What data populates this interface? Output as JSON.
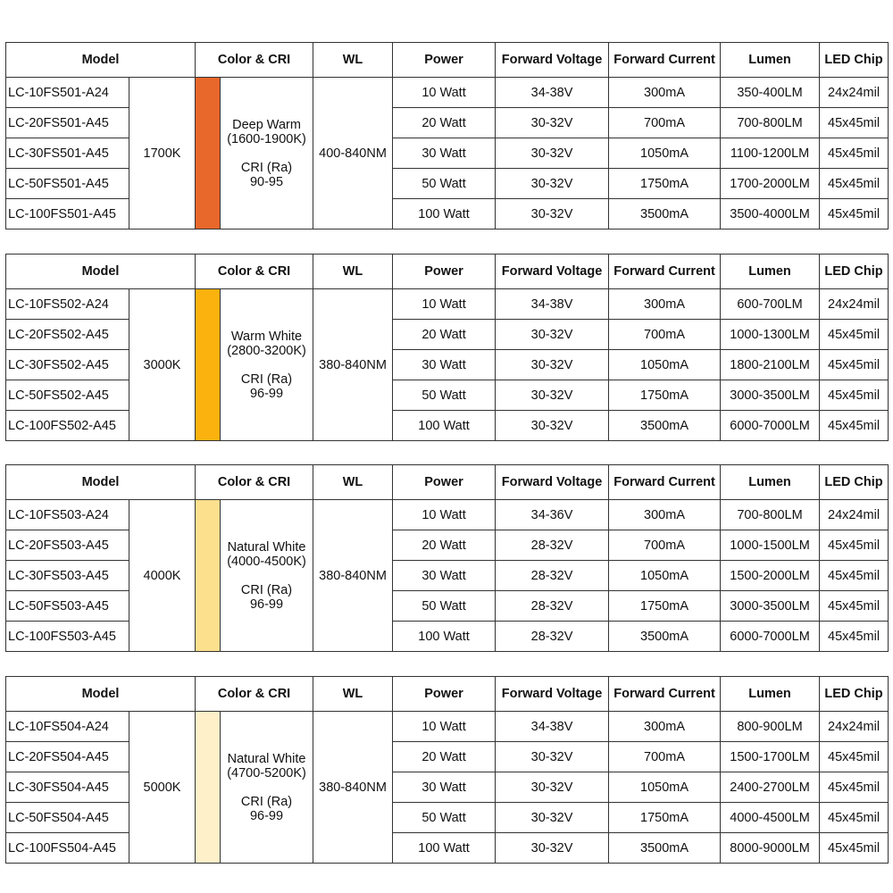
{
  "headers": [
    "Model",
    "Color & CRI",
    "WL",
    "Power",
    "Forward Voltage",
    "Forward Current",
    "Lumen",
    "LED Chip"
  ],
  "tables": [
    {
      "cct": "1700K",
      "swatch_color": "#E8672A",
      "color_name": "Deep Warm",
      "color_range": "(1600-1900K)",
      "cri_label": "CRI (Ra)",
      "cri_value": "90-95",
      "wl": "400-840NM",
      "rows": [
        {
          "model": "LC-10FS501-A24",
          "power": "10 Watt",
          "voltage": "34-38V",
          "current": "300mA",
          "lumen": "350-400LM",
          "chip": "24x24mil"
        },
        {
          "model": "LC-20FS501-A45",
          "power": "20 Watt",
          "voltage": "30-32V",
          "current": "700mA",
          "lumen": "700-800LM",
          "chip": "45x45mil"
        },
        {
          "model": "LC-30FS501-A45",
          "power": "30 Watt",
          "voltage": "30-32V",
          "current": "1050mA",
          "lumen": "1100-1200LM",
          "chip": "45x45mil"
        },
        {
          "model": "LC-50FS501-A45",
          "power": "50 Watt",
          "voltage": "30-32V",
          "current": "1750mA",
          "lumen": "1700-2000LM",
          "chip": "45x45mil"
        },
        {
          "model": "LC-100FS501-A45",
          "power": "100 Watt",
          "voltage": "30-32V",
          "current": "3500mA",
          "lumen": "3500-4000LM",
          "chip": "45x45mil"
        }
      ]
    },
    {
      "cct": "3000K",
      "swatch_color": "#FBB20E",
      "color_name": "Warm White",
      "color_range": "(2800-3200K)",
      "cri_label": "CRI (Ra)",
      "cri_value": "96-99",
      "wl": "380-840NM",
      "rows": [
        {
          "model": "LC-10FS502-A24",
          "power": "10 Watt",
          "voltage": "34-38V",
          "current": "300mA",
          "lumen": "600-700LM",
          "chip": "24x24mil"
        },
        {
          "model": "LC-20FS502-A45",
          "power": "20 Watt",
          "voltage": "30-32V",
          "current": "700mA",
          "lumen": "1000-1300LM",
          "chip": "45x45mil"
        },
        {
          "model": "LC-30FS502-A45",
          "power": "30 Watt",
          "voltage": "30-32V",
          "current": "1050mA",
          "lumen": "1800-2100LM",
          "chip": "45x45mil"
        },
        {
          "model": "LC-50FS502-A45",
          "power": "50 Watt",
          "voltage": "30-32V",
          "current": "1750mA",
          "lumen": "3000-3500LM",
          "chip": "45x45mil"
        },
        {
          "model": "LC-100FS502-A45",
          "power": "100 Watt",
          "voltage": "30-32V",
          "current": "3500mA",
          "lumen": "6000-7000LM",
          "chip": "45x45mil"
        }
      ]
    },
    {
      "cct": "4000K",
      "swatch_color": "#FCE08E",
      "color_name": "Natural White",
      "color_range": "(4000-4500K)",
      "cri_label": "CRI (Ra)",
      "cri_value": "96-99",
      "wl": "380-840NM",
      "rows": [
        {
          "model": "LC-10FS503-A24",
          "power": "10 Watt",
          "voltage": "34-36V",
          "current": "300mA",
          "lumen": "700-800LM",
          "chip": "24x24mil"
        },
        {
          "model": "LC-20FS503-A45",
          "power": "20 Watt",
          "voltage": "28-32V",
          "current": "700mA",
          "lumen": "1000-1500LM",
          "chip": "45x45mil"
        },
        {
          "model": "LC-30FS503-A45",
          "power": "30 Watt",
          "voltage": "28-32V",
          "current": "1050mA",
          "lumen": "1500-2000LM",
          "chip": "45x45mil"
        },
        {
          "model": "LC-50FS503-A45",
          "power": "50 Watt",
          "voltage": "28-32V",
          "current": "1750mA",
          "lumen": "3000-3500LM",
          "chip": "45x45mil"
        },
        {
          "model": "LC-100FS503-A45",
          "power": "100 Watt",
          "voltage": "28-32V",
          "current": "3500mA",
          "lumen": "6000-7000LM",
          "chip": "45x45mil"
        }
      ]
    },
    {
      "cct": "5000K",
      "swatch_color": "#FEF0C8",
      "color_name": "Natural White",
      "color_range": "(4700-5200K)",
      "cri_label": "CRI (Ra)",
      "cri_value": "96-99",
      "wl": "380-840NM",
      "rows": [
        {
          "model": "LC-10FS504-A24",
          "power": "10 Watt",
          "voltage": "34-38V",
          "current": "300mA",
          "lumen": "800-900LM",
          "chip": "24x24mil"
        },
        {
          "model": "LC-20FS504-A45",
          "power": "20 Watt",
          "voltage": "30-32V",
          "current": "700mA",
          "lumen": "1500-1700LM",
          "chip": "45x45mil"
        },
        {
          "model": "LC-30FS504-A45",
          "power": "30 Watt",
          "voltage": "30-32V",
          "current": "1050mA",
          "lumen": "2400-2700LM",
          "chip": "45x45mil"
        },
        {
          "model": "LC-50FS504-A45",
          "power": "50 Watt",
          "voltage": "30-32V",
          "current": "1750mA",
          "lumen": "4000-4500LM",
          "chip": "45x45mil"
        },
        {
          "model": "LC-100FS504-A45",
          "power": "100 Watt",
          "voltage": "30-32V",
          "current": "3500mA",
          "lumen": "8000-9000LM",
          "chip": "45x45mil"
        }
      ]
    }
  ]
}
